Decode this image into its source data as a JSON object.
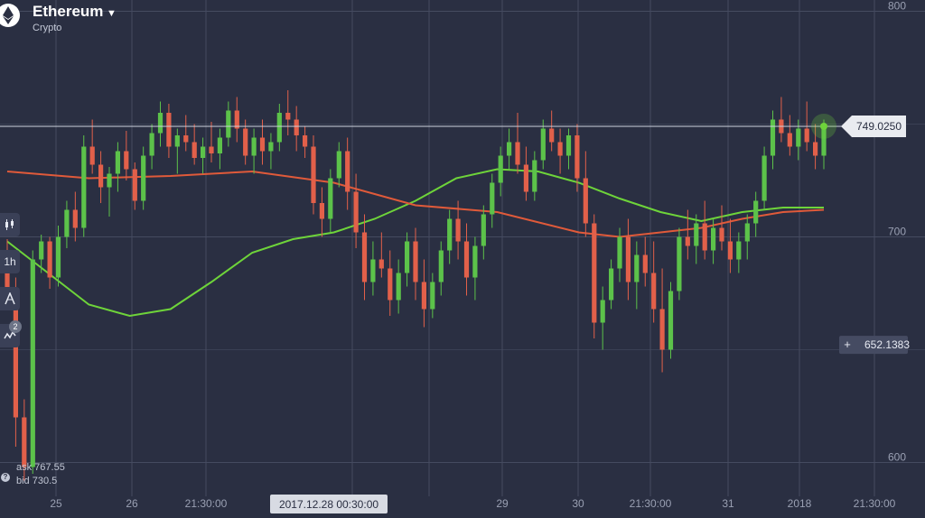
{
  "asset": {
    "name": "Ethereum",
    "category": "Crypto"
  },
  "toolbar": {
    "chart_type_icon": "candlestick-icon",
    "timeframe": "1h",
    "drawing_icon": "compass-icon",
    "indicators_icon": "indicator-wave-icon",
    "indicators_count": "2"
  },
  "quotes": {
    "ask": "ask 767.55",
    "bid": "bid 730.5",
    "help_icon": "question-icon"
  },
  "price_labels": {
    "current": "749.0250",
    "crosshair": "652.1383",
    "crosshair_icon": "plus-icon"
  },
  "time_cursor": "2017.12.28 00:30:00",
  "colors": {
    "up": "#5cc24a",
    "down": "#e2604a",
    "ma_fast": "#6ed43a",
    "ma_slow": "#e05a3a",
    "background": "#2a2f42"
  },
  "chart_data": {
    "type": "candlestick",
    "title": "",
    "ylim": [
      585,
      805
    ],
    "y_ticks": [
      600,
      700,
      800
    ],
    "y_tick_labels": [
      "600",
      "700",
      "800"
    ],
    "x_ticks": [
      "25",
      "26",
      "21:30:00",
      "29",
      "30",
      "21:30:00",
      "31",
      "2018",
      "21:30:00"
    ],
    "current_price": 749.025,
    "crosshair_price": 652.1383,
    "ohlc": [
      [
        692,
        699,
        669,
        676
      ],
      [
        676,
        682,
        607,
        620
      ],
      [
        620,
        628,
        592,
        598
      ],
      [
        598,
        694,
        595,
        690
      ],
      [
        690,
        701,
        684,
        698
      ],
      [
        698,
        700,
        677,
        682
      ],
      [
        682,
        705,
        678,
        700
      ],
      [
        700,
        716,
        695,
        712
      ],
      [
        712,
        720,
        698,
        704
      ],
      [
        704,
        745,
        700,
        740
      ],
      [
        740,
        752,
        728,
        732
      ],
      [
        732,
        738,
        715,
        722
      ],
      [
        722,
        731,
        709,
        728
      ],
      [
        728,
        742,
        720,
        738
      ],
      [
        738,
        747,
        725,
        730
      ],
      [
        730,
        733,
        712,
        716
      ],
      [
        716,
        740,
        712,
        736
      ],
      [
        736,
        750,
        730,
        746
      ],
      [
        746,
        760,
        740,
        755
      ],
      [
        755,
        759,
        735,
        740
      ],
      [
        740,
        748,
        728,
        745
      ],
      [
        745,
        754,
        738,
        742
      ],
      [
        742,
        750,
        732,
        735
      ],
      [
        735,
        744,
        728,
        740
      ],
      [
        740,
        751,
        733,
        737
      ],
      [
        737,
        748,
        730,
        744
      ],
      [
        744,
        760,
        740,
        756
      ],
      [
        756,
        762,
        742,
        748
      ],
      [
        748,
        752,
        732,
        736
      ],
      [
        736,
        748,
        728,
        744
      ],
      [
        744,
        752,
        732,
        738
      ],
      [
        738,
        746,
        730,
        742
      ],
      [
        742,
        759,
        738,
        755
      ],
      [
        755,
        765,
        745,
        752
      ],
      [
        752,
        758,
        738,
        745
      ],
      [
        745,
        749,
        735,
        740
      ],
      [
        740,
        745,
        710,
        715
      ],
      [
        715,
        722,
        700,
        708
      ],
      [
        708,
        730,
        702,
        726
      ],
      [
        726,
        742,
        722,
        738
      ],
      [
        738,
        744,
        712,
        720
      ],
      [
        720,
        728,
        695,
        702
      ],
      [
        702,
        710,
        672,
        680
      ],
      [
        680,
        698,
        674,
        690
      ],
      [
        690,
        702,
        682,
        686
      ],
      [
        686,
        694,
        665,
        672
      ],
      [
        672,
        690,
        666,
        684
      ],
      [
        684,
        702,
        678,
        698
      ],
      [
        698,
        704,
        672,
        680
      ],
      [
        680,
        690,
        660,
        668
      ],
      [
        668,
        684,
        664,
        680
      ],
      [
        680,
        698,
        674,
        694
      ],
      [
        694,
        712,
        688,
        708
      ],
      [
        708,
        716,
        690,
        698
      ],
      [
        698,
        706,
        674,
        682
      ],
      [
        682,
        700,
        672,
        696
      ],
      [
        696,
        714,
        690,
        710
      ],
      [
        710,
        728,
        704,
        724
      ],
      [
        724,
        740,
        718,
        736
      ],
      [
        736,
        748,
        730,
        742
      ],
      [
        742,
        755,
        728,
        732
      ],
      [
        732,
        740,
        716,
        720
      ],
      [
        720,
        738,
        716,
        734
      ],
      [
        734,
        752,
        730,
        748
      ],
      [
        748,
        756,
        738,
        742
      ],
      [
        742,
        748,
        728,
        736
      ],
      [
        736,
        748,
        730,
        745
      ],
      [
        745,
        750,
        720,
        726
      ],
      [
        726,
        738,
        700,
        706
      ],
      [
        706,
        710,
        655,
        662
      ],
      [
        662,
        678,
        650,
        672
      ],
      [
        672,
        690,
        668,
        686
      ],
      [
        686,
        704,
        680,
        700
      ],
      [
        700,
        708,
        672,
        680
      ],
      [
        680,
        698,
        668,
        692
      ],
      [
        692,
        700,
        678,
        684
      ],
      [
        684,
        698,
        662,
        668
      ],
      [
        668,
        686,
        640,
        650
      ],
      [
        650,
        680,
        646,
        676
      ],
      [
        676,
        704,
        672,
        700
      ],
      [
        700,
        712,
        690,
        696
      ],
      [
        696,
        710,
        688,
        706
      ],
      [
        706,
        716,
        690,
        694
      ],
      [
        694,
        708,
        688,
        704
      ],
      [
        704,
        714,
        694,
        698
      ],
      [
        698,
        708,
        684,
        690
      ],
      [
        690,
        702,
        684,
        698
      ],
      [
        698,
        710,
        690,
        706
      ],
      [
        706,
        720,
        700,
        716
      ],
      [
        716,
        740,
        712,
        736
      ],
      [
        736,
        756,
        730,
        752
      ],
      [
        752,
        762,
        742,
        746
      ],
      [
        746,
        754,
        736,
        740
      ],
      [
        740,
        752,
        734,
        748
      ],
      [
        748,
        760,
        738,
        742
      ],
      [
        742,
        750,
        730,
        736
      ],
      [
        736,
        752,
        730,
        749
      ]
    ],
    "series": [
      {
        "name": "",
        "color": "#6ed43a",
        "points": [
          [
            0,
            698
          ],
          [
            0.05,
            684
          ],
          [
            0.1,
            670
          ],
          [
            0.15,
            665
          ],
          [
            0.2,
            668
          ],
          [
            0.25,
            680
          ],
          [
            0.3,
            693
          ],
          [
            0.35,
            699
          ],
          [
            0.4,
            702
          ],
          [
            0.45,
            708
          ],
          [
            0.5,
            716
          ],
          [
            0.55,
            726
          ],
          [
            0.6,
            730
          ],
          [
            0.65,
            729
          ],
          [
            0.7,
            724
          ],
          [
            0.75,
            717
          ],
          [
            0.8,
            711
          ],
          [
            0.85,
            707
          ],
          [
            0.9,
            711
          ],
          [
            0.95,
            713
          ],
          [
            1,
            713
          ]
        ]
      },
      {
        "name": "",
        "color": "#e05a3a",
        "points": [
          [
            0,
            729
          ],
          [
            0.1,
            726
          ],
          [
            0.2,
            727
          ],
          [
            0.3,
            729
          ],
          [
            0.4,
            724
          ],
          [
            0.5,
            714
          ],
          [
            0.6,
            711
          ],
          [
            0.7,
            702
          ],
          [
            0.75,
            700
          ],
          [
            0.8,
            702
          ],
          [
            0.85,
            704
          ],
          [
            0.9,
            708
          ],
          [
            0.95,
            711
          ],
          [
            1,
            712
          ]
        ]
      }
    ]
  }
}
